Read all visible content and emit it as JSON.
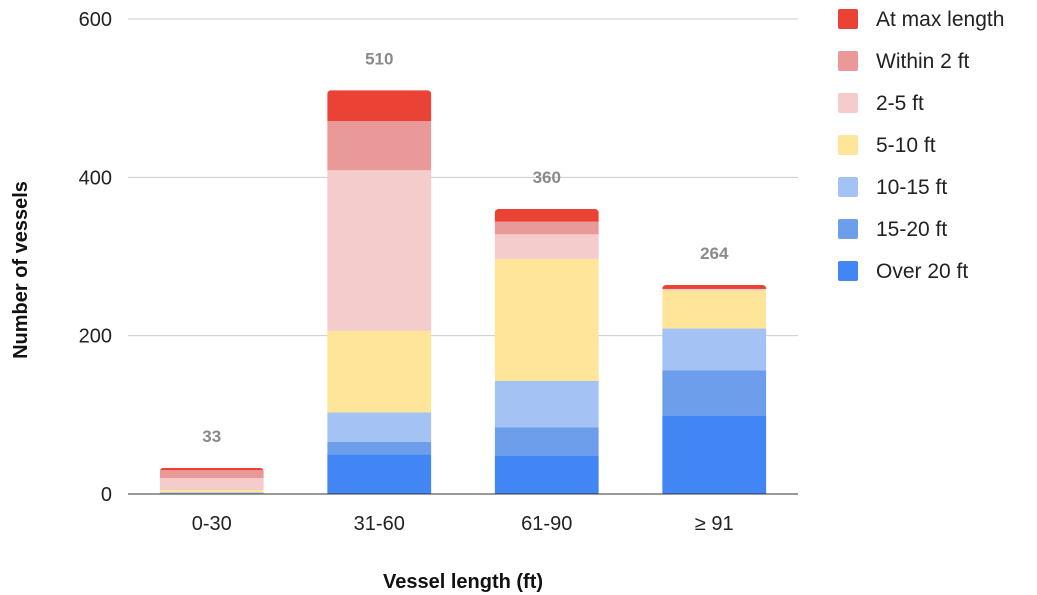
{
  "chart_data": {
    "type": "bar",
    "stacked": true,
    "title": "",
    "xlabel": "Vessel length (ft)",
    "ylabel": "Number of vessels",
    "ylim": [
      0,
      600
    ],
    "yticks": [
      "0",
      "200",
      "400",
      "600"
    ],
    "grid": true,
    "legend_position": "right",
    "categories": [
      "0-30",
      "31-60",
      "61-90",
      "≥ 91"
    ],
    "totals": [
      "33",
      "510",
      "360",
      "264"
    ],
    "series": [
      {
        "name": "Over 20 ft",
        "color": "#4285F4",
        "values": [
          0,
          50,
          48,
          99
        ]
      },
      {
        "name": "15-20 ft",
        "color": "#6D9EEB",
        "values": [
          0,
          16,
          36,
          57
        ]
      },
      {
        "name": "10-15 ft",
        "color": "#A4C2F4",
        "values": [
          2,
          37,
          59,
          53
        ]
      },
      {
        "name": "5-10 ft",
        "color": "#FFE599",
        "values": [
          3,
          103,
          154,
          48
        ]
      },
      {
        "name": "2-5 ft",
        "color": "#F4CCCC",
        "values": [
          15,
          203,
          31,
          2
        ]
      },
      {
        "name": "Within 2 ft",
        "color": "#EA9999",
        "values": [
          10,
          62,
          16,
          0
        ]
      },
      {
        "name": "At max length",
        "color": "#EA4335",
        "values": [
          3,
          39,
          16,
          5
        ]
      }
    ],
    "legend_order": [
      "At max length",
      "Within 2 ft",
      "2-5 ft",
      "5-10 ft",
      "10-15 ft",
      "15-20 ft",
      "Over 20 ft"
    ]
  }
}
